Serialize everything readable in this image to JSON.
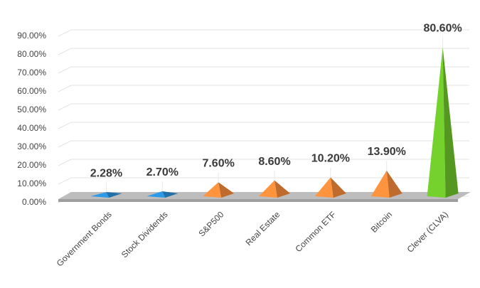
{
  "chart_data": {
    "type": "pyramid",
    "categories": [
      "Government Bonds",
      "Stock Dividends",
      "S&P500",
      "Real Estate",
      "Common ETF",
      "Bitcoin",
      "Clever (CLVA)"
    ],
    "values": [
      2.28,
      2.7,
      7.6,
      8.6,
      10.2,
      13.9,
      80.6
    ],
    "value_labels": [
      "2.28%",
      "2.70%",
      "7.60%",
      "8.60%",
      "10.20%",
      "13.90%",
      "80.60%"
    ],
    "colors": [
      "#2a8fd6",
      "#2a8fd6",
      "#f5893a",
      "#f5893a",
      "#f5893a",
      "#f5893a",
      "#6cc22a"
    ],
    "ylim": [
      0,
      90
    ],
    "yticks": [
      {
        "value": 0,
        "label": "0.00%"
      },
      {
        "value": 10,
        "label": "10.00%"
      },
      {
        "value": 20,
        "label": "20.00%"
      },
      {
        "value": 30,
        "label": "30.00%"
      },
      {
        "value": 40,
        "label": "40.00%"
      },
      {
        "value": 50,
        "label": "50.00%"
      },
      {
        "value": 60,
        "label": "60.00%"
      },
      {
        "value": 70,
        "label": "70.00%"
      },
      {
        "value": 80,
        "label": "80.00%"
      },
      {
        "value": 90,
        "label": "90.00%"
      }
    ],
    "grid": true
  }
}
